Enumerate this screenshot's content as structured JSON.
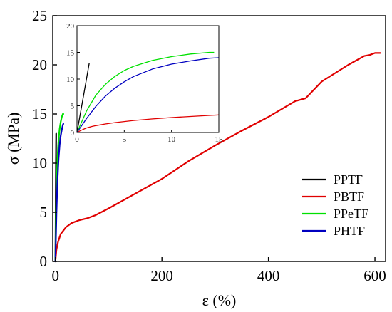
{
  "chart_data": [
    {
      "type": "line",
      "xlabel": "ε (%)",
      "ylabel": "σ (MPa)",
      "xlim": [
        -5,
        620
      ],
      "ylim": [
        0,
        25
      ],
      "xticks": [
        0,
        200,
        400,
        600
      ],
      "yticks": [
        0,
        5,
        10,
        15,
        20,
        25
      ],
      "grid": false,
      "legend": "bottom-right",
      "series": [
        {
          "name": "PPTF",
          "color": "#000000",
          "x": [
            0,
            0.3,
            0.6,
            1.0,
            1.4
          ],
          "y": [
            0,
            3.0,
            6.0,
            10.0,
            13.0
          ]
        },
        {
          "name": "PBTF",
          "color": "#e00000",
          "x": [
            0,
            2,
            5,
            10,
            20,
            30,
            45,
            60,
            75,
            100,
            150,
            200,
            250,
            300,
            350,
            400,
            450,
            470,
            500,
            550,
            580,
            590,
            600,
            610
          ],
          "y": [
            0,
            1.2,
            2.0,
            2.8,
            3.5,
            3.9,
            4.2,
            4.4,
            4.7,
            5.4,
            6.9,
            8.4,
            10.2,
            11.8,
            13.3,
            14.7,
            16.3,
            16.6,
            18.3,
            20.0,
            20.9,
            21.0,
            21.2,
            21.2
          ]
        },
        {
          "name": "PPeTF",
          "color": "#00e000",
          "x": [
            0,
            1,
            2,
            3,
            4,
            5,
            6,
            8,
            10,
            12,
            14,
            15
          ],
          "y": [
            0,
            4.0,
            7.0,
            9.0,
            10.5,
            11.6,
            12.4,
            13.5,
            14.2,
            14.7,
            15.0,
            15.0
          ]
        },
        {
          "name": "PHTF",
          "color": "#0000c0",
          "x": [
            0,
            1,
            2,
            3,
            4,
            5,
            6,
            8,
            10,
            12,
            14,
            15
          ],
          "y": [
            0,
            2.6,
            4.9,
            6.8,
            8.3,
            9.5,
            10.5,
            11.9,
            12.8,
            13.4,
            13.9,
            14.0
          ]
        }
      ]
    },
    {
      "type": "line",
      "xlabel": "",
      "ylabel": "",
      "xlim": [
        0,
        15
      ],
      "ylim": [
        0,
        20
      ],
      "xticks": [
        0,
        5,
        10,
        15
      ],
      "yticks": [
        0,
        5,
        10,
        15,
        20
      ],
      "grid": false,
      "legend": "none",
      "series": [
        {
          "color": "#000000",
          "x": [
            0,
            0.3,
            0.6,
            1.0,
            1.3
          ],
          "y": [
            0,
            3.0,
            6.0,
            10.0,
            13.0
          ]
        },
        {
          "color": "#e00000",
          "x": [
            0,
            0.3,
            0.6,
            1.0,
            1.5,
            2,
            3,
            4,
            5,
            6,
            8,
            10,
            12,
            14,
            15
          ],
          "y": [
            0,
            0.3,
            0.55,
            0.85,
            1.1,
            1.3,
            1.6,
            1.85,
            2.05,
            2.25,
            2.55,
            2.8,
            3.0,
            3.2,
            3.3
          ]
        },
        {
          "color": "#00e000",
          "x": [
            0,
            1,
            2,
            3,
            4,
            5,
            6,
            8,
            10,
            12,
            14,
            14.5
          ],
          "y": [
            0,
            4.0,
            7.0,
            9.0,
            10.5,
            11.6,
            12.4,
            13.5,
            14.2,
            14.7,
            15.0,
            15.0
          ]
        },
        {
          "color": "#0000c0",
          "x": [
            0,
            1,
            2,
            3,
            4,
            5,
            6,
            8,
            10,
            12,
            14,
            15
          ],
          "y": [
            0,
            2.6,
            4.9,
            6.8,
            8.3,
            9.5,
            10.5,
            11.9,
            12.8,
            13.4,
            13.9,
            14.0
          ]
        }
      ]
    }
  ]
}
